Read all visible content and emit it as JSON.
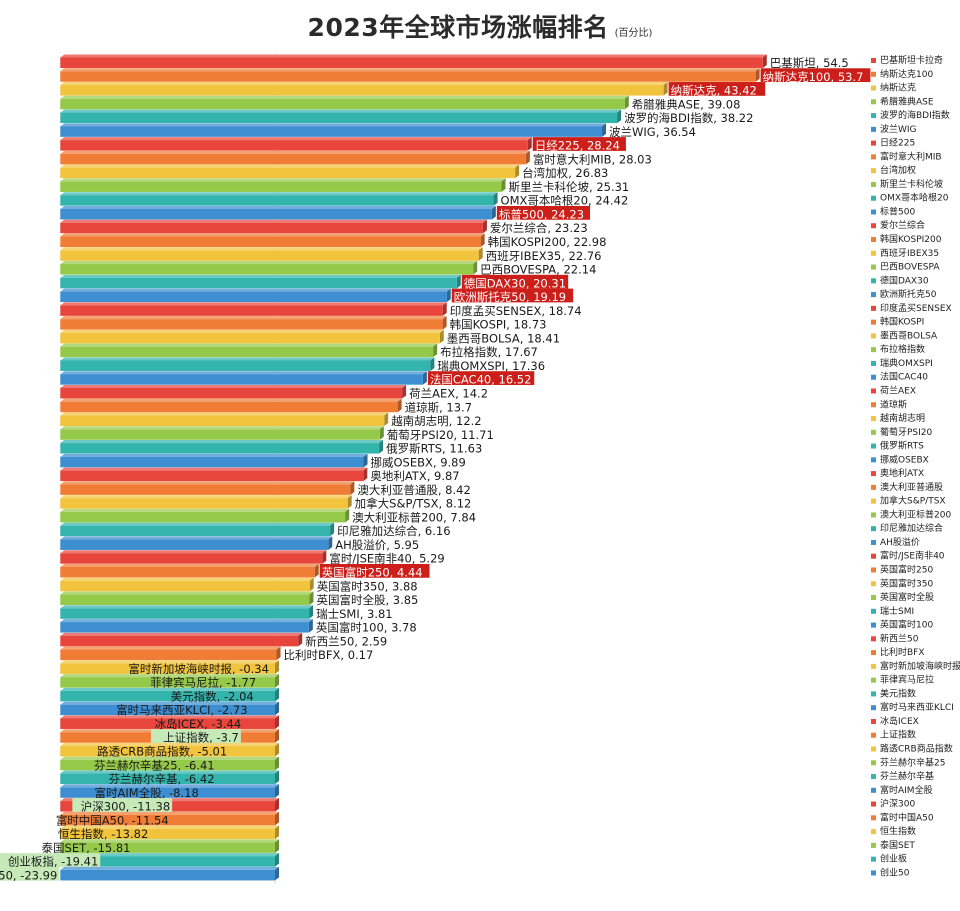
{
  "chart_data": {
    "type": "bar",
    "orientation": "horizontal",
    "title": "2023年全球市场涨幅排名",
    "subtitle": "(百分比)",
    "xlabel": "",
    "ylabel": "",
    "grid": false,
    "legend_placement": "right",
    "categories": [
      "巴基斯坦",
      "纳斯达克100",
      "纳斯达克",
      "希腊雅典ASE",
      "波罗的海BDI指数",
      "波兰WIG",
      "日经225",
      "富时意大利MIB",
      "台湾加权",
      "斯里兰卡科伦坡",
      "OMX哥本哈根20",
      "标普500",
      "爱尔兰综合",
      "韩国KOSPI200",
      "西班牙IBEX35",
      "巴西BOVESPA",
      "德国DAX30",
      "欧洲斯托克50",
      "印度孟买SENSEX",
      "韩国KOSPI",
      "墨西哥BOLSA",
      "布拉格指数",
      "瑞典OMXSPI",
      "法国CAC40",
      "荷兰AEX",
      "道琼斯",
      "越南胡志明",
      "葡萄牙PSI20",
      "俄罗斯RTS",
      "挪威OSEBX",
      "奥地利ATX",
      "澳大利亚普通股",
      "加拿大S&P/TSX",
      "澳大利亚标普200",
      "印尼雅加达综合",
      "AH股溢价",
      "富时/JSE南非40",
      "英国富时250",
      "英国富时350",
      "英国富时全股",
      "瑞士SMI",
      "英国富时100",
      "新西兰50",
      "比利时BFX",
      "富时新加坡海峡时报",
      "菲律宾马尼拉",
      "美元指数",
      "富时马来西亚KLCI",
      "冰岛ICEX",
      "上证指数",
      "路透CRB商品指数",
      "芬兰赫尔辛基25",
      "芬兰赫尔辛基",
      "富时AIM全股",
      "沪深300",
      "富时中国A50",
      "恒生指数",
      "泰国SET",
      "创业板指",
      "创业50"
    ],
    "values": [
      54.5,
      53.7,
      43.42,
      39.08,
      38.22,
      36.54,
      28.24,
      28.03,
      26.83,
      25.31,
      24.42,
      24.23,
      23.23,
      22.98,
      22.76,
      22.14,
      20.31,
      19.19,
      18.74,
      18.73,
      18.41,
      17.67,
      17.36,
      16.52,
      14.2,
      13.7,
      12.2,
      11.71,
      11.63,
      9.89,
      9.87,
      8.42,
      8.12,
      7.84,
      6.16,
      5.95,
      5.29,
      4.44,
      3.88,
      3.85,
      3.81,
      3.78,
      2.59,
      0.17,
      -0.34,
      -1.77,
      -2.04,
      -2.73,
      -3.44,
      -3.7,
      -5.01,
      -6.41,
      -6.42,
      -8.18,
      -11.38,
      -11.54,
      -13.82,
      -15.81,
      -19.41,
      -23.99
    ],
    "value_labels": [
      "54.5",
      "53.7",
      "43.42",
      "39.08",
      "38.22",
      "36.54",
      "28.24",
      "28.03",
      "26.83",
      "25.31",
      "24.42",
      "24.23",
      "23.23",
      "22.98",
      "22.76",
      "22.14",
      "20.31",
      "19.19",
      "18.74",
      "18.73",
      "18.41",
      "17.67",
      "17.36",
      "16.52",
      "14.2",
      "13.7",
      "12.2",
      "11.71",
      "11.63",
      "9.89",
      "9.87",
      "8.42",
      "8.12",
      "7.84",
      "6.16",
      "5.95",
      "5.29",
      "4.44",
      "3.88",
      "3.85",
      "3.81",
      "3.78",
      "2.59",
      "0.17",
      "-0.34",
      "-1.77",
      "-2.04",
      "-2.73",
      "-3.44",
      "-3.7",
      "-5.01",
      "-6.41",
      "-6.42",
      "-8.18",
      "-11.38",
      "-11.54",
      "-13.82",
      "-15.81",
      "-19.41",
      "-23.99"
    ],
    "legend": [
      "巴基斯坦卡拉奇",
      "纳斯达克100",
      "纳斯达克",
      "希腊雅典ASE",
      "波罗的海BDI指数",
      "波兰WIG",
      "日经225",
      "富时意大利MIB",
      "台湾加权",
      "斯里兰卡科伦坡",
      "OMX哥本哈根20",
      "标普500",
      "爱尔兰综合",
      "韩国KOSPI200",
      "西班牙IBEX35",
      "巴西BOVESPA",
      "德国DAX30",
      "欧洲斯托克50",
      "印度孟买SENSEX",
      "韩国KOSPI",
      "墨西哥BOLSA",
      "布拉格指数",
      "瑞典OMXSPI",
      "法国CAC40",
      "荷兰AEX",
      "道琼斯",
      "越南胡志明",
      "葡萄牙PSI20",
      "俄罗斯RTS",
      "挪威OSEBX",
      "奥地利ATX",
      "澳大利亚普通股",
      "加拿大S&P/TSX",
      "澳大利亚标普200",
      "印尼雅加达综合",
      "AH股溢价",
      "富时/JSE南非40",
      "英国富时250",
      "英国富时350",
      "英国富时全股",
      "瑞士SMI",
      "英国富时100",
      "新西兰50",
      "比利时BFX",
      "富时新加坡海峡时报",
      "菲律宾马尼拉",
      "美元指数",
      "富时马来西亚KLCI",
      "冰岛ICEX",
      "上证指数",
      "路透CRB商品指数",
      "芬兰赫尔辛基25",
      "芬兰赫尔辛基",
      "富时AIM全股",
      "沪深300",
      "富时中国A50",
      "恒生指数",
      "泰国SET",
      "创业板",
      "创业50"
    ],
    "highlighted_red": [
      "纳斯达克100",
      "纳斯达克",
      "日经225",
      "标普500",
      "德国DAX30",
      "欧洲斯托克50",
      "法国CAC40",
      "英国富时250"
    ],
    "highlighted_green": [
      "上证指数",
      "沪深300",
      "创业板指",
      "创业50"
    ],
    "palette": [
      "#e8463c",
      "#f07c35",
      "#f2c33c",
      "#95c94a",
      "#33b4ad",
      "#3d8fd1"
    ],
    "highlight_red_color": "#cc1f1a",
    "highlight_green_color": "#c6e9b8"
  }
}
